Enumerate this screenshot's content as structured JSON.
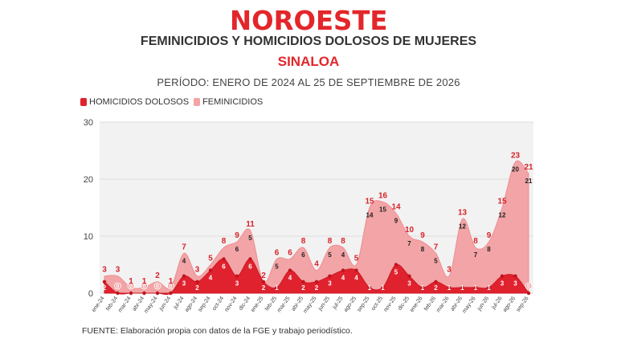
{
  "header": {
    "logo": "NOROESTE",
    "title": "FEMINICIDIOS Y HOMICIDIOS DOLOSOS DE MUJERES",
    "subtitle": "SINALOA",
    "period": "PERÍODO: ENERO DE 2024 AL 25 DE SEPTIEMBRE DE 2026"
  },
  "footer": {
    "source": "FUENTE: Elaboración propia con datos de la FGE y trabajo periodístico."
  },
  "colors": {
    "brand": "#e3262a",
    "homicidios": "#e0222e",
    "feminicidios": "#f2a4a6",
    "plot_bg": "#f2f2f2",
    "grid": "#dddddd"
  },
  "chart_data": {
    "type": "area",
    "stacked": true,
    "ylim": [
      0,
      30
    ],
    "yticks": [
      "0",
      "10",
      "20",
      "30"
    ],
    "grid": true,
    "legend_position": "top-left",
    "categories": [
      "ene-24",
      "feb-24",
      "mar-24",
      "abr-24",
      "may-24",
      "jun-24",
      "jul-24",
      "ago-24",
      "sep-24",
      "oct-24",
      "nov-24",
      "dic-24",
      "ene-25",
      "feb-25",
      "mar-25",
      "abr-25",
      "may-25",
      "jun-25",
      "jul-25",
      "ago-25",
      "sep-25",
      "oct-25",
      "nov-25",
      "dic-25",
      "ene-26",
      "feb-26",
      "mar-26",
      "abr-26",
      "may-26",
      "jun-26",
      "jul-26",
      "ago-26",
      "sep-26"
    ],
    "series": [
      {
        "name": "HOMICIDIOS DOLOSOS",
        "values": [
          2,
          0,
          0,
          0,
          0,
          0,
          3,
          2,
          4,
          6,
          3,
          6,
          2,
          1,
          4,
          2,
          2,
          3,
          4,
          4,
          1,
          1,
          5,
          3,
          1,
          2,
          1,
          1,
          1,
          1,
          3,
          3,
          0
        ]
      },
      {
        "name": "FEMINICIDIOS",
        "values": [
          1,
          3,
          1,
          1,
          2,
          1,
          4,
          1,
          1,
          2,
          6,
          5,
          0,
          5,
          2,
          6,
          2,
          5,
          4,
          1,
          14,
          15,
          9,
          7,
          8,
          5,
          2,
          12,
          7,
          8,
          12,
          20,
          21
        ]
      }
    ],
    "total_labels": [
      "3",
      "3",
      "1",
      "1",
      "2",
      "1",
      "7",
      "3",
      "5",
      "8",
      "9",
      "11",
      "2",
      "6",
      "6",
      "8",
      "4",
      "8",
      "8",
      "5",
      "15",
      "16",
      "14",
      "10",
      "9",
      "7",
      "3",
      "13",
      "8",
      "9",
      "15",
      "23",
      "21"
    ]
  }
}
